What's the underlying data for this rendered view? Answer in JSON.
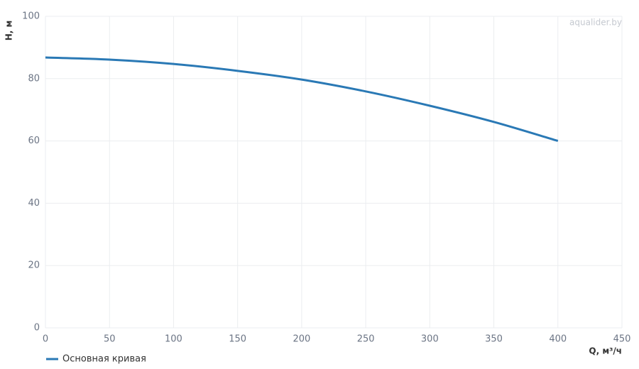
{
  "chart_data": {
    "type": "line",
    "watermark": "aqualider.by",
    "xlabel": "Q, м³/ч",
    "ylabel": "H, м",
    "x": [
      0,
      50,
      100,
      150,
      200,
      250,
      300,
      350,
      400
    ],
    "series": [
      {
        "name": "Основная кривая",
        "color": "#2a79b5",
        "values": [
          86.8,
          86.1,
          84.7,
          82.5,
          79.7,
          75.9,
          71.3,
          66.1,
          60.0
        ]
      }
    ],
    "xlim": [
      0,
      450
    ],
    "xticks": [
      0,
      50,
      100,
      150,
      200,
      250,
      300,
      350,
      400,
      450
    ],
    "ylim": [
      0,
      100
    ],
    "yticks": [
      0,
      20,
      40,
      60,
      80,
      100
    ],
    "grid": true,
    "legend": "bottom-left"
  }
}
